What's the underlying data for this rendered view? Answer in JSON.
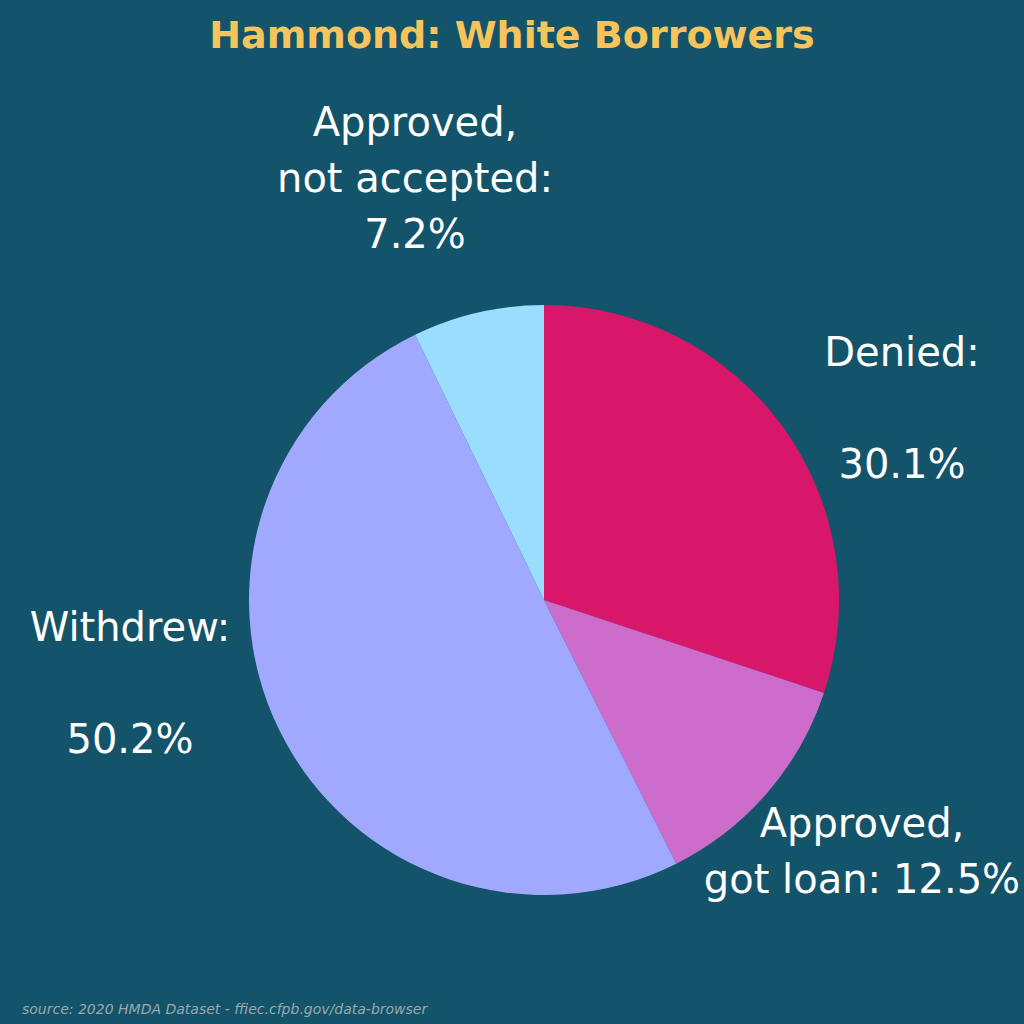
{
  "chart_data": {
    "type": "pie",
    "title": "Hammond: White Borrowers",
    "categories": [
      "Denied:",
      "Approved, got loan:",
      "Withdrew:",
      "Approved, not accepted:"
    ],
    "values": [
      30.1,
      12.5,
      50.2,
      7.2
    ],
    "value_labels": [
      "30.1%",
      "12.5%",
      "50.2%",
      "7.2%"
    ],
    "colors": [
      "#d8176a",
      "#cc6dcc",
      "#a1a9ff",
      "#9addff"
    ],
    "data_labels": true,
    "source": "source: 2020 HMDA Dataset - ffiec.cfpb.gov/data-browser"
  }
}
